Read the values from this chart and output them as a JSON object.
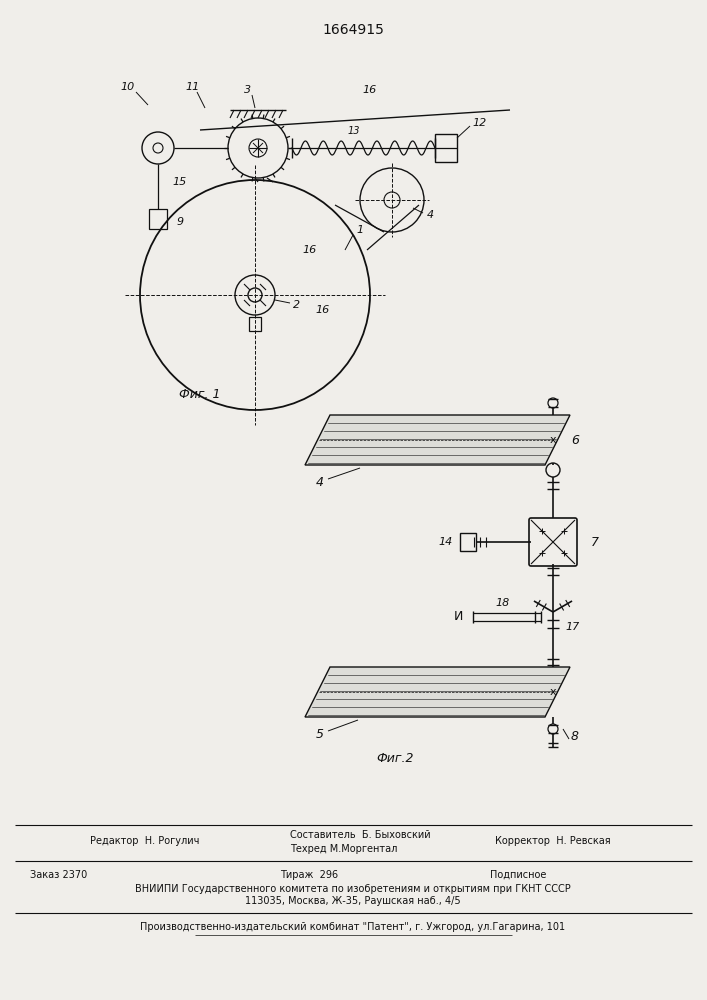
{
  "patent_number": "1664915",
  "fig1_label": "Фиг. 1",
  "fig2_label": "Фиг.2",
  "editor_line": "Редактор  Н. Рогулич",
  "composer_line": "Составитель  Б. Быховский",
  "techred_line": "Техред М.Моргентал",
  "corrector_line": "Корректор  Н. Ревская",
  "order_line": "Заказ 2370",
  "tirazh_line": "Тираж  296",
  "podpisnoe_line": "Подписное",
  "vniiipi_line": "ВНИИПИ Государственного комитета по изобретениям и открытиям при ГКНТ СССР",
  "address_line": "113035, Москва, Ж-35, Раушская наб., 4/5",
  "factory_line": "Производственно-издательский комбинат \"Патент\", г. Ужгород, ул.Гагарина, 101",
  "bg_color": "#f0eeea",
  "line_color": "#111111",
  "text_color": "#111111"
}
